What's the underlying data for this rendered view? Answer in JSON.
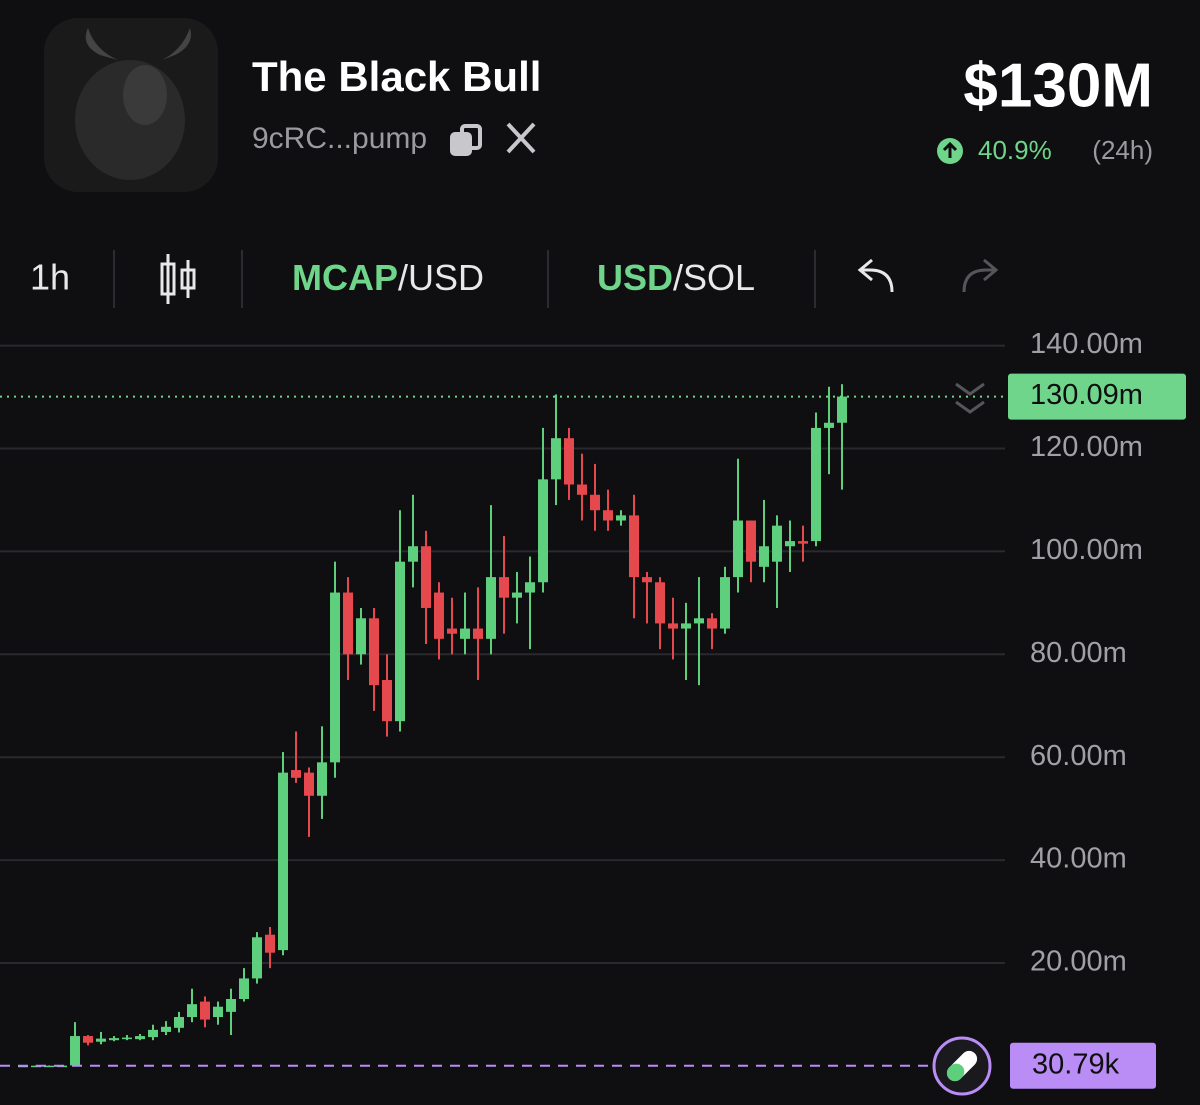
{
  "header": {
    "title": "The Black Bull",
    "address": "9cRC...pump",
    "market_cap": "$130M",
    "change": "40.9%",
    "period": "(24h)"
  },
  "toolbar": {
    "interval": "1h",
    "mode_1": [
      "MCAP",
      "/USD"
    ],
    "mode_2": [
      "USD",
      "/SOL"
    ]
  },
  "chart_data": {
    "type": "candlestick",
    "ylim": [
      -7.6,
      144
    ],
    "yticks": [
      {
        "value": 140,
        "label": "140.00m"
      },
      {
        "value": 120,
        "label": "120.00m"
      },
      {
        "value": 100,
        "label": "100.00m"
      },
      {
        "value": 80,
        "label": "80.00m"
      },
      {
        "value": 60,
        "label": "60.00m"
      },
      {
        "value": 40,
        "label": "40.00m"
      },
      {
        "value": 20,
        "label": "20.00m"
      }
    ],
    "grid": true,
    "up_color": "#5ecf7d",
    "down_color": "#e5484d",
    "candles": {
      "open": [
        0.03,
        0.03,
        0.04,
        0.04,
        0.1,
        5.8,
        4.7,
        5,
        5.2,
        5.2,
        5.6,
        6.6,
        7.4,
        9.5,
        12.5,
        9.5,
        10.5,
        13,
        17,
        25.5,
        22.5,
        57.5,
        57,
        52.5,
        59,
        92,
        80,
        87,
        75,
        67,
        98,
        101,
        92,
        85,
        83,
        85,
        83,
        95,
        91,
        92,
        94,
        114,
        122,
        113,
        111,
        108,
        106,
        107,
        95,
        94,
        86,
        85,
        86,
        87,
        85,
        95,
        106,
        97,
        98,
        101,
        102,
        102,
        124,
        125
      ],
      "high": [
        0.1,
        0.1,
        0.1,
        0.12,
        8.5,
        6,
        6.6,
        5.8,
        6,
        6.2,
        8,
        8.7,
        10.5,
        15,
        13.5,
        12.5,
        15,
        19,
        26,
        27,
        61,
        65,
        58,
        66,
        98,
        95,
        89,
        89,
        80,
        108,
        111,
        104,
        94,
        91,
        92,
        93,
        109,
        103,
        96,
        99,
        124,
        130.5,
        124,
        119,
        117,
        112,
        108,
        111,
        96,
        95,
        91,
        90,
        95,
        88,
        97,
        118,
        106,
        110,
        107,
        106,
        105,
        127,
        132,
        132.5
      ],
      "low": [
        0,
        0,
        0,
        0,
        0,
        4,
        4.2,
        4.8,
        5,
        5,
        5,
        6,
        6.5,
        8.5,
        7.5,
        8,
        6,
        12.5,
        16,
        19,
        21.5,
        55,
        44.5,
        48,
        56,
        75,
        78,
        69,
        64,
        65,
        93,
        82,
        79,
        80,
        80,
        75,
        80,
        84,
        86,
        81,
        92,
        109,
        110,
        106,
        104,
        104,
        105,
        87,
        86,
        81,
        79,
        75,
        74,
        81,
        84,
        92,
        94,
        94,
        89,
        96,
        98,
        101,
        115,
        112
      ],
      "close": [
        0.03,
        0.04,
        0.04,
        0.05,
        5.8,
        4.5,
        5.3,
        5.4,
        5.5,
        5.8,
        7,
        7.6,
        9.5,
        12,
        9,
        11.5,
        13,
        17,
        25,
        22,
        57,
        56,
        52.5,
        59,
        92,
        80,
        87,
        74,
        67,
        98,
        101,
        89,
        83,
        84,
        85,
        83,
        95,
        91,
        92,
        94,
        114,
        122,
        113,
        111,
        108,
        106,
        107,
        95,
        94,
        86,
        85,
        86,
        87,
        85,
        95,
        106,
        98,
        101,
        105,
        102,
        101.5,
        124,
        125,
        130.09
      ]
    },
    "current_price": {
      "value": 130.09,
      "label": "130.09m"
    },
    "base_price": {
      "value": 0.03079,
      "label": "30.79k"
    }
  }
}
